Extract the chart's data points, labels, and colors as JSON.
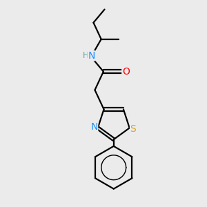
{
  "background_color": "#ebebeb",
  "bond_color": "#000000",
  "figsize": [
    3.0,
    3.0
  ],
  "dpi": 100,
  "atom_colors": {
    "N": "#1E90FF",
    "O": "#FF0000",
    "S": "#DAA520",
    "C": "#000000",
    "H": "#5F9EA0"
  },
  "lw": 1.6,
  "fontsize": 9
}
